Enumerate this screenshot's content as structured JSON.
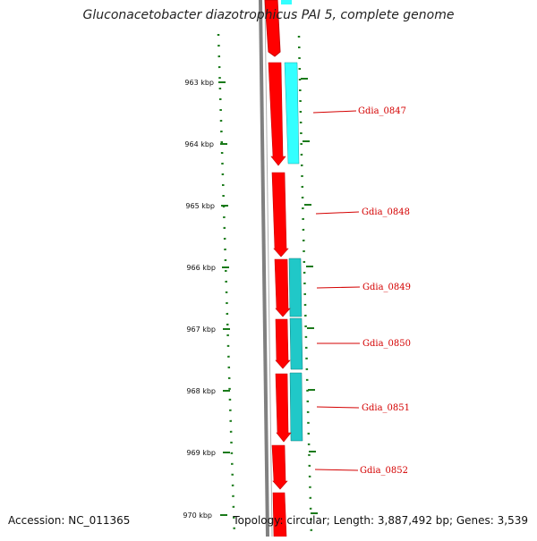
{
  "title": "Gluconacetobacter diazotrophicus PAI 5, complete genome",
  "footer": {
    "accession": "Accession: NC_011365",
    "topology_line": "Topology: circular; Length: 3,887,492 bp; Genes: 3,539"
  },
  "ticks": [
    {
      "label": "963 kbp",
      "kbp": 963
    },
    {
      "label": "964 kbp",
      "kbp": 964
    },
    {
      "label": "965 kbp",
      "kbp": 965
    },
    {
      "label": "966 kbp",
      "kbp": 966
    },
    {
      "label": "967 kbp",
      "kbp": 967
    },
    {
      "label": "968 kbp",
      "kbp": 968
    },
    {
      "label": "969 kbp",
      "kbp": 969
    },
    {
      "label": "970 kbp",
      "kbp": 970
    }
  ],
  "genes": [
    {
      "name": "Gdia_0847"
    },
    {
      "name": "Gdia_0848"
    },
    {
      "name": "Gdia_0849"
    },
    {
      "name": "Gdia_0850"
    },
    {
      "name": "Gdia_0851"
    },
    {
      "name": "Gdia_0852"
    }
  ],
  "colors": {
    "gene_red": "#ff0000",
    "gene_red_dark": "#c80000",
    "feature_cyan": "#33ffff",
    "feature_teal": "#20c8c8",
    "backbone": "#808080",
    "tick_green": "#1a7a1a",
    "label_red": "#d40000"
  }
}
